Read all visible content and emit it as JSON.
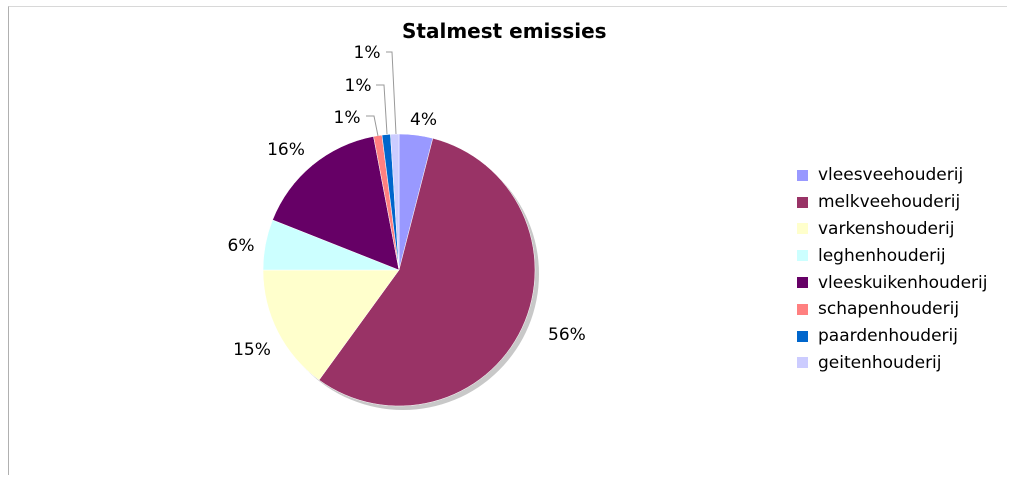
{
  "chart_data": {
    "type": "pie",
    "title": "Stalmest emissies",
    "slices": [
      {
        "label": "vleesveehouderij",
        "value": 4,
        "display": "4%",
        "color": "#9999ff"
      },
      {
        "label": "melkveehouderij",
        "value": 56,
        "display": "56%",
        "color": "#993366"
      },
      {
        "label": "varkenshouderij",
        "value": 15,
        "display": "15%",
        "color": "#ffffcc"
      },
      {
        "label": "leghenhouderij",
        "value": 6,
        "display": "6%",
        "color": "#ccffff"
      },
      {
        "label": "vleeskuikenhouderij",
        "value": 16,
        "display": "16%",
        "color": "#660066"
      },
      {
        "label": "schapenhouderij",
        "value": 1,
        "display": "1%",
        "color": "#ff8080"
      },
      {
        "label": "paardenhouderij",
        "value": 1,
        "display": "1%",
        "color": "#0066cc"
      },
      {
        "label": "geitenhouderij",
        "value": 1,
        "display": "1%",
        "color": "#ccccff"
      }
    ],
    "legend_position": "right"
  }
}
